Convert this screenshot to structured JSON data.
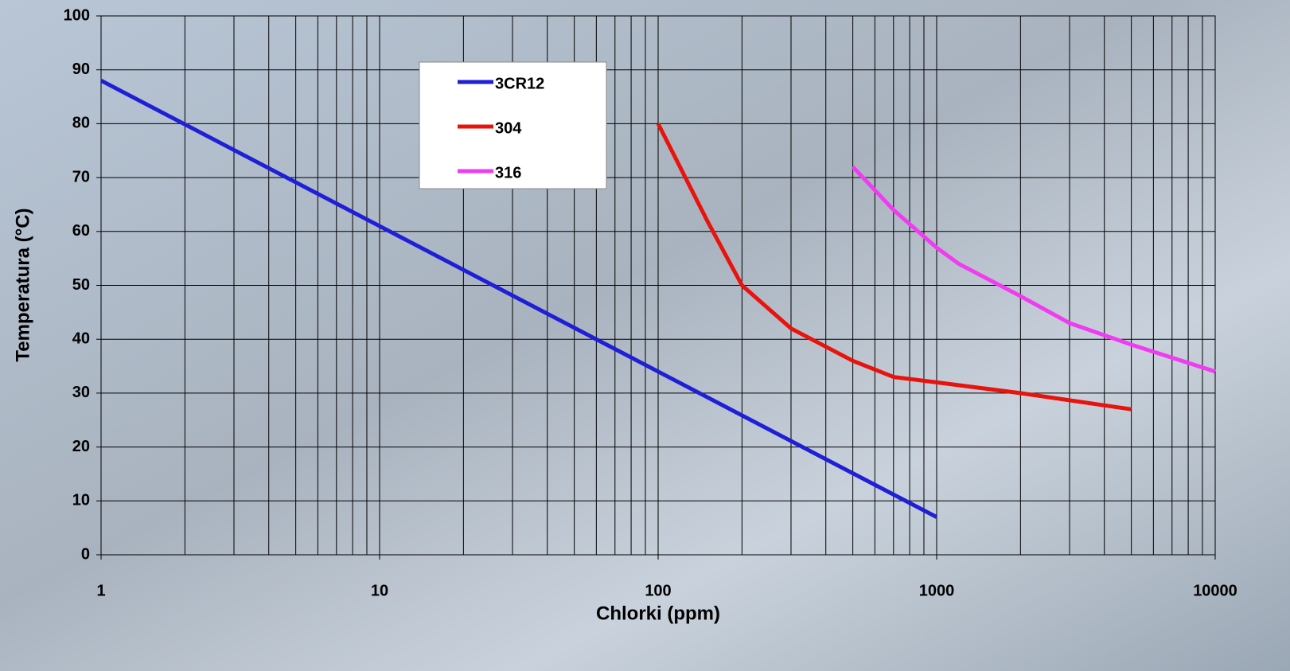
{
  "chart_data": {
    "type": "line",
    "xlabel": "Chlorki (ppm)",
    "ylabel": "Temperatura (°C)",
    "xscale": "log",
    "grid": true,
    "minor_grid": true,
    "legend": true,
    "xlim": [
      1,
      10000
    ],
    "xticks": [
      1,
      10,
      100,
      1000,
      10000
    ],
    "ylim": [
      0,
      100
    ],
    "yticks": [
      0,
      10,
      20,
      30,
      40,
      50,
      60,
      70,
      80,
      90,
      100
    ],
    "series": [
      {
        "name": "3CR12",
        "color": "#1f1fd6",
        "x": [
          1,
          10,
          100,
          1000
        ],
        "values": [
          88,
          61,
          34,
          7
        ]
      },
      {
        "name": "304",
        "color": "#e8130c",
        "x": [
          100,
          150,
          200,
          300,
          500,
          700,
          1000,
          2000,
          5000
        ],
        "values": [
          80,
          62,
          50,
          42,
          36,
          33,
          32,
          30,
          27
        ]
      },
      {
        "name": "316",
        "color": "#f03cf0",
        "x": [
          500,
          700,
          1000,
          1200,
          2000,
          3000,
          5000,
          10000
        ],
        "values": [
          72,
          64,
          57,
          54,
          48,
          43,
          39,
          34
        ]
      }
    ]
  }
}
